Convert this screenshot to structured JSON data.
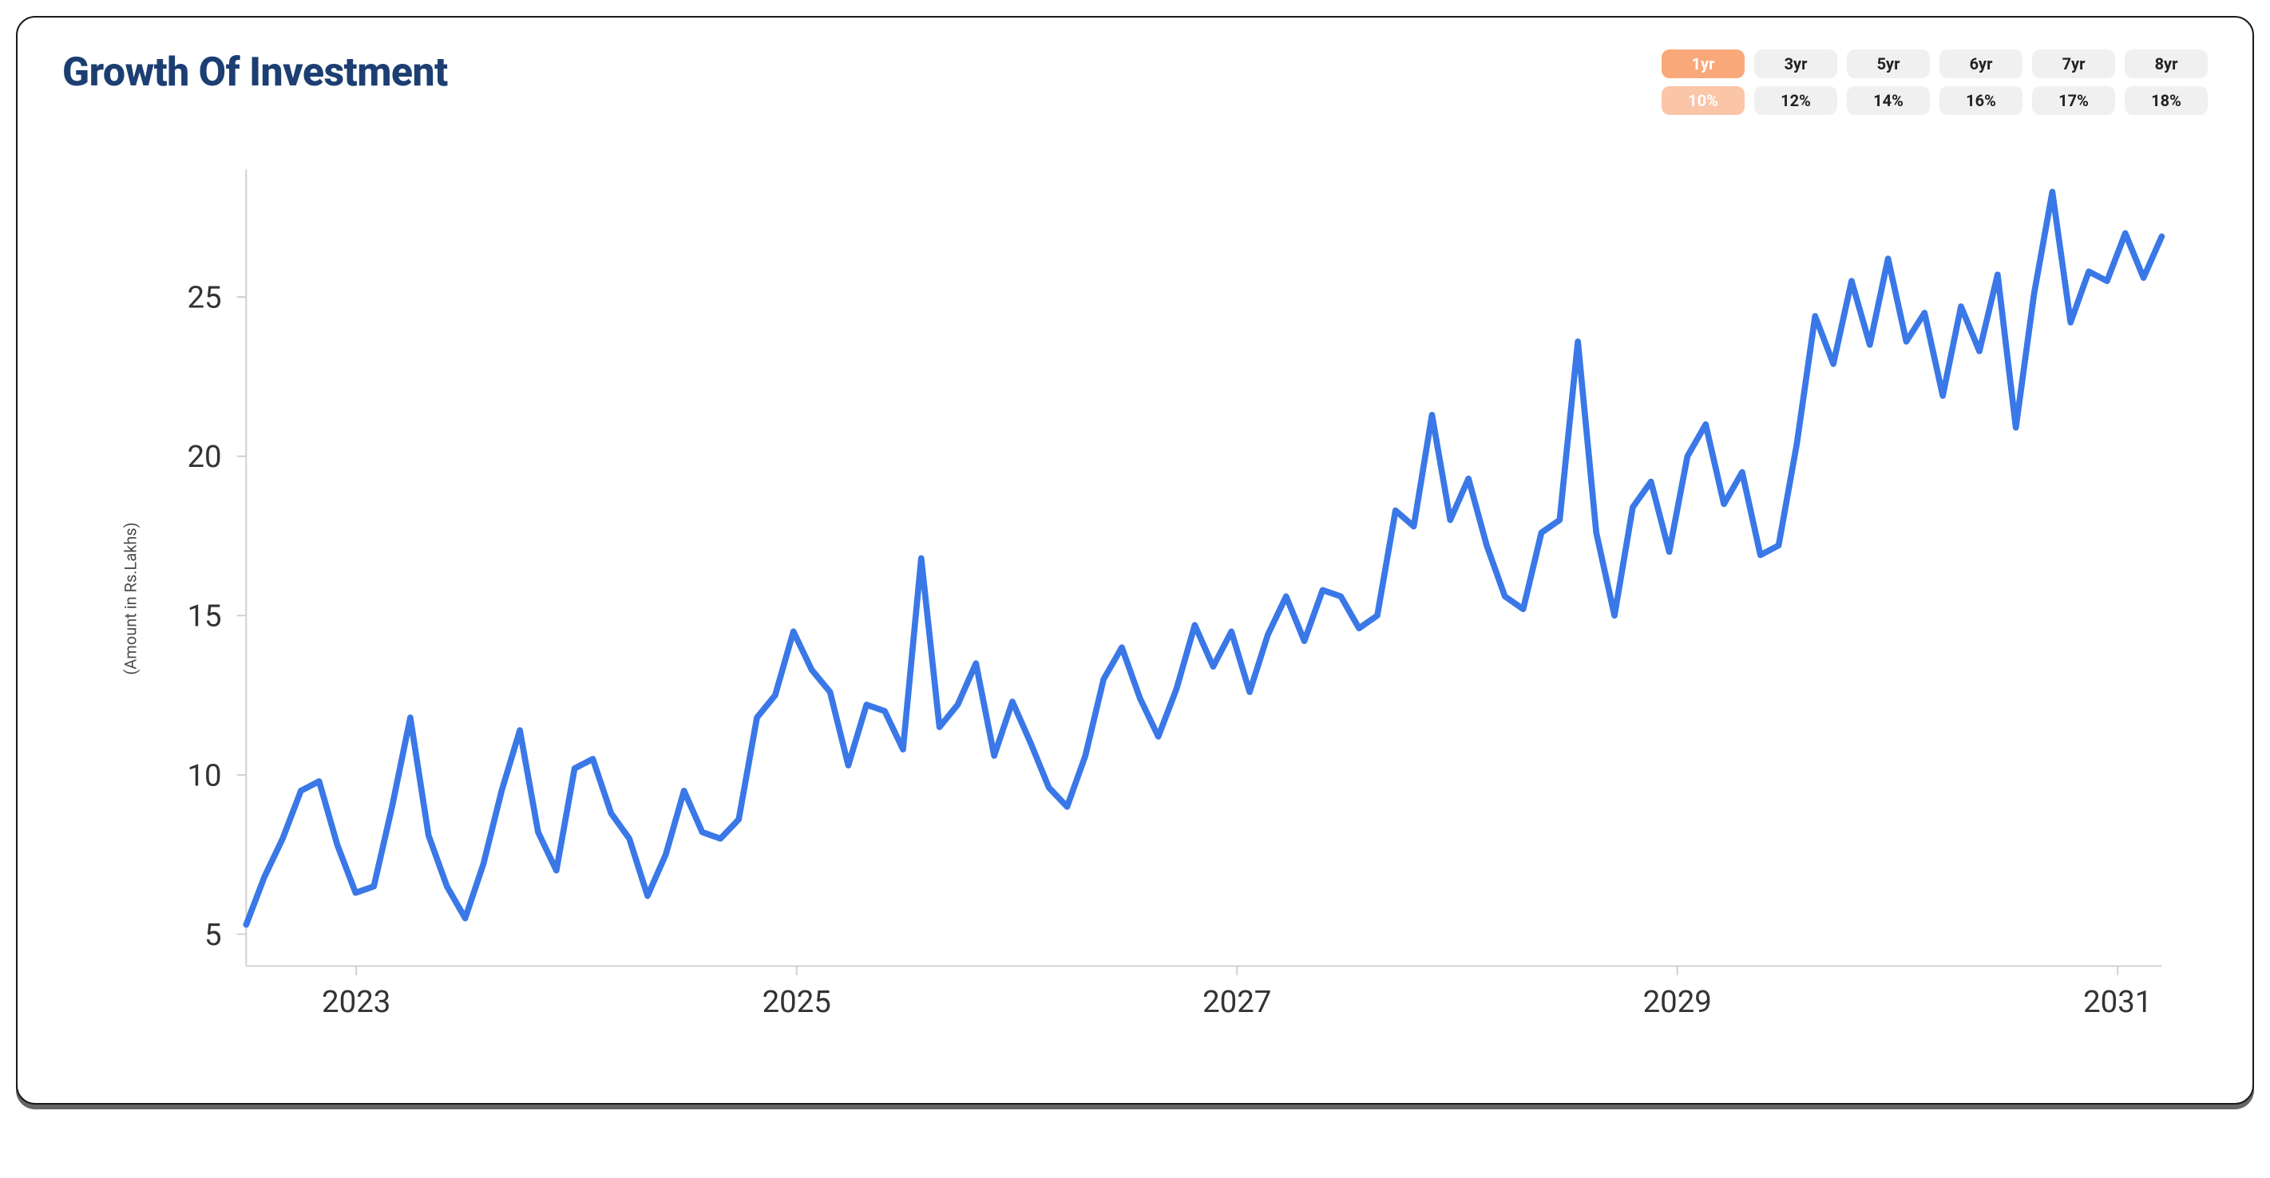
{
  "title": "Growth Of Investment",
  "title_color": "#1c3e72",
  "title_fontsize": 50,
  "filters": {
    "years": [
      {
        "label": "1yr",
        "active": true
      },
      {
        "label": "3yr",
        "active": false
      },
      {
        "label": "5yr",
        "active": false
      },
      {
        "label": "6yr",
        "active": false
      },
      {
        "label": "7yr",
        "active": false
      },
      {
        "label": "8yr",
        "active": false
      }
    ],
    "rates": [
      {
        "label": "10%",
        "active": true
      },
      {
        "label": "12%",
        "active": false
      },
      {
        "label": "14%",
        "active": false
      },
      {
        "label": "16%",
        "active": false
      },
      {
        "label": "17%",
        "active": false
      },
      {
        "label": "18%",
        "active": false
      }
    ],
    "active_strong_bg": "#f9a87a",
    "active_soft_bg": "#fbc5a8",
    "inactive_bg": "#f0f0f0",
    "chip_fontsize": 20
  },
  "chart": {
    "type": "line",
    "ylabel": "(Amount in Rs.Lakhs)",
    "ylabel_fontsize": 20,
    "line_color": "#3a78e7",
    "line_width": 4,
    "background_color": "#ffffff",
    "axis_color": "#cfcfcf",
    "tick_fontsize": 20,
    "tick_color": "#333333",
    "x_years": [
      2022.5,
      2031.2
    ],
    "x_ticks": [
      2023,
      2025,
      2027,
      2029,
      2031
    ],
    "ylim": [
      4,
      29
    ],
    "y_ticks": [
      5,
      10,
      15,
      20,
      25
    ],
    "values": [
      5.3,
      6.8,
      8.0,
      9.5,
      9.8,
      7.8,
      6.3,
      6.5,
      9.0,
      11.8,
      8.1,
      6.5,
      5.5,
      7.2,
      9.5,
      11.4,
      8.2,
      7.0,
      10.2,
      10.5,
      8.8,
      8.0,
      6.2,
      7.5,
      9.5,
      8.2,
      8.0,
      8.6,
      11.8,
      12.5,
      14.5,
      13.3,
      12.6,
      10.3,
      12.2,
      12.0,
      10.8,
      16.8,
      11.5,
      12.2,
      13.5,
      10.6,
      12.3,
      11.0,
      9.6,
      9.0,
      10.6,
      13.0,
      14.0,
      12.4,
      11.2,
      12.7,
      14.7,
      13.4,
      14.5,
      12.6,
      14.4,
      15.6,
      14.2,
      15.8,
      15.6,
      14.6,
      15.0,
      18.3,
      17.8,
      21.3,
      18.0,
      19.3,
      17.2,
      15.6,
      15.2,
      17.6,
      18.0,
      23.6,
      17.6,
      15.0,
      18.4,
      19.2,
      17.0,
      20.0,
      21.0,
      18.5,
      19.5,
      16.9,
      17.2,
      20.4,
      24.4,
      22.9,
      25.5,
      23.5,
      26.2,
      23.6,
      24.5,
      21.9,
      24.7,
      23.3,
      25.7,
      20.9,
      25.1,
      28.3,
      24.2,
      25.8,
      25.5,
      27.0,
      25.6,
      26.9
    ]
  }
}
